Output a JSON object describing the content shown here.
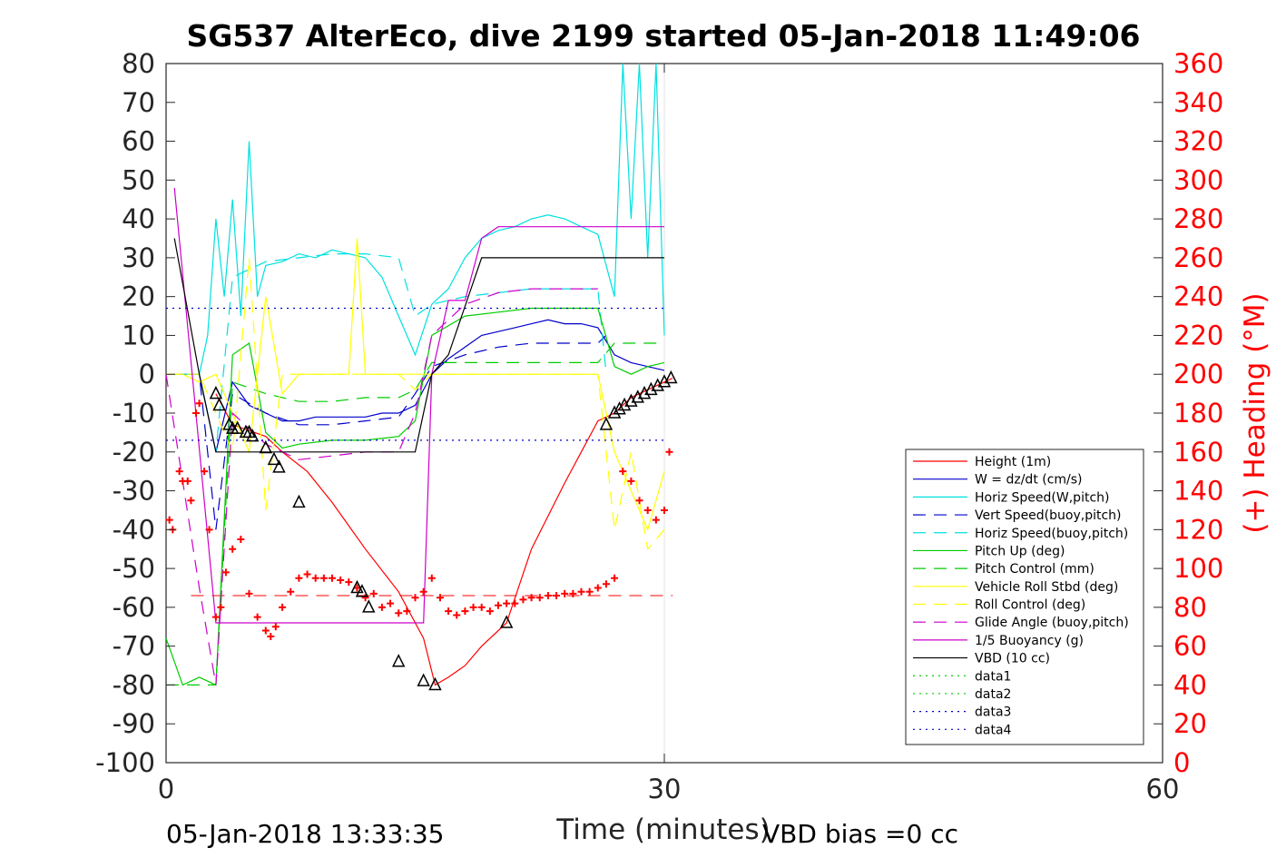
{
  "chart_data": {
    "type": "line",
    "title": "SG537 AlterEco, dive 2199 started 05-Jan-2018 11:49:06",
    "xlabel": "Time (minutes)",
    "ylabel_right": "(+) Heading (°M)",
    "xlim": [
      0,
      60
    ],
    "ylim": [
      -100,
      80
    ],
    "ylim_right": [
      0,
      360
    ],
    "xticks": [
      "0",
      "30",
      "60"
    ],
    "yticks": [
      "80",
      "70",
      "60",
      "50",
      "40",
      "30",
      "20",
      "10",
      "0",
      "-10",
      "-20",
      "-30",
      "-40",
      "-50",
      "-60",
      "-70",
      "-80",
      "-90",
      "-100"
    ],
    "yticks_right": [
      "360",
      "340",
      "320",
      "300",
      "280",
      "260",
      "240",
      "220",
      "200",
      "180",
      "160",
      "140",
      "120",
      "100",
      "80",
      "60",
      "40",
      "20",
      "0"
    ],
    "footer_left": "05-Jan-2018 13:33:35",
    "footer_right": "VBD bias =0 cc",
    "legend_position": "bottom-right",
    "grid_x": [
      30
    ],
    "series": [
      {
        "name": "Height (1m)",
        "color": "#ff0000",
        "style": "solid",
        "x": [
          3,
          4,
          6,
          7,
          8.5,
          10,
          12,
          14,
          15.5,
          16.2,
          17,
          18,
          19,
          20.5,
          22,
          24,
          26,
          27,
          28,
          29,
          30,
          30.5
        ],
        "y": [
          -5,
          -13,
          -16,
          -20,
          -25,
          -33,
          -45,
          -56,
          -68,
          -80,
          -78,
          -75,
          -70,
          -64,
          -45,
          -28,
          -12,
          -10,
          -6,
          -4,
          -2,
          -1
        ]
      },
      {
        "name": "W = dz/dt (cm/s)",
        "color": "#0000cc",
        "style": "solid",
        "x": [
          0,
          2,
          3,
          4,
          5,
          6,
          7,
          8,
          9,
          10,
          11,
          12,
          13,
          14,
          15,
          16,
          17,
          18,
          19,
          20,
          21,
          22,
          23,
          24,
          25,
          26,
          27,
          28,
          29,
          30
        ],
        "y": [
          0,
          0,
          -20,
          -2,
          -8,
          -10,
          -12,
          -12,
          -11,
          -11,
          -11,
          -11,
          -10,
          -10,
          -8,
          0,
          4,
          7,
          10,
          11,
          12,
          13,
          14,
          13,
          13,
          12,
          5,
          3,
          2,
          1
        ]
      },
      {
        "name": "Horiz Speed(W,pitch)",
        "color": "#00e0e0",
        "style": "solid",
        "x": [
          0,
          2,
          2.5,
          3,
          3.5,
          4,
          4.5,
          5,
          5.5,
          6,
          7,
          8,
          9,
          10,
          11,
          12,
          13,
          14,
          15,
          16,
          17,
          18,
          19,
          20,
          21,
          22,
          23,
          24,
          25,
          26,
          27,
          27.5,
          28,
          28.5,
          29,
          29.5,
          30
        ],
        "y": [
          0,
          0,
          10,
          40,
          20,
          45,
          15,
          60,
          20,
          28,
          29,
          31,
          30,
          32,
          31,
          30,
          25,
          15,
          5,
          18,
          22,
          30,
          35,
          37,
          38,
          40,
          41,
          40,
          38,
          36,
          20,
          80,
          40,
          80,
          30,
          80,
          10
        ]
      },
      {
        "name": "Vert Speed(buoy,pitch)",
        "color": "#0000cc",
        "style": "dash",
        "x": [
          0,
          2,
          3,
          4,
          6,
          8,
          10,
          12,
          14,
          15,
          16,
          18,
          20,
          22,
          24,
          26,
          26.5
        ],
        "y": [
          0,
          0,
          -40,
          -5,
          -10,
          -13,
          -13,
          -12,
          -11,
          -5,
          2,
          5,
          7,
          8,
          8,
          8,
          10
        ]
      },
      {
        "name": "Horiz Speed(buoy,pitch)",
        "color": "#00e0e0",
        "style": "dash",
        "x": [
          0,
          2,
          3,
          4,
          6,
          8,
          10,
          12,
          14,
          15,
          16,
          18,
          20,
          22,
          24,
          26,
          26.5
        ],
        "y": [
          0,
          0,
          -20,
          25,
          29,
          30,
          31,
          31,
          30,
          15,
          18,
          20,
          21,
          22,
          22,
          22,
          0
        ]
      },
      {
        "name": "Pitch Up (deg)",
        "color": "#00cc00",
        "style": "solid",
        "x": [
          0,
          1,
          2,
          3,
          4,
          5,
          6,
          7,
          8,
          10,
          12,
          14,
          15,
          16,
          18,
          20,
          22,
          24,
          26,
          27,
          28,
          29,
          30
        ],
        "y": [
          -68,
          -80,
          -78,
          -80,
          5,
          8,
          -15,
          -19,
          -18,
          -17,
          -17,
          -16,
          -12,
          10,
          15,
          16,
          17,
          17,
          17,
          2,
          0,
          2,
          3
        ]
      },
      {
        "name": "Pitch Control (mm)",
        "color": "#00cc00",
        "style": "dash",
        "x": [
          0,
          3,
          4,
          6,
          8,
          10,
          12,
          14,
          15,
          16,
          18,
          20,
          22,
          24,
          26,
          27,
          30
        ],
        "y": [
          -80,
          -80,
          -2,
          -5,
          -7,
          -7,
          -6,
          -6,
          -4,
          3,
          3,
          3,
          3,
          3,
          3,
          8,
          8
        ]
      },
      {
        "name": "Vehicle Roll Stbd (deg)",
        "color": "#ffff00",
        "style": "solid",
        "x": [
          0,
          1,
          2,
          3,
          4,
          5,
          6,
          7,
          8,
          9,
          10,
          11,
          11.5,
          12,
          13,
          14,
          15,
          16,
          18,
          20,
          22,
          24,
          26,
          27,
          28,
          29,
          30
        ],
        "y": [
          0,
          0,
          -2,
          0,
          -10,
          -20,
          20,
          -5,
          0,
          0,
          0,
          0,
          35,
          0,
          0,
          0,
          0,
          0,
          0,
          0,
          0,
          0,
          0,
          -20,
          -30,
          -40,
          -25
        ]
      },
      {
        "name": "Roll Control (deg)",
        "color": "#ffff00",
        "style": "dash",
        "x": [
          0,
          2,
          3,
          4,
          5,
          6,
          7,
          8,
          10,
          12,
          14,
          15,
          16,
          18,
          20,
          22,
          24,
          26,
          27,
          28,
          29,
          30
        ],
        "y": [
          0,
          0,
          -10,
          -20,
          30,
          -35,
          0,
          0,
          0,
          0,
          0,
          -4,
          0,
          0,
          0,
          0,
          0,
          0,
          -40,
          -20,
          -45,
          -40
        ]
      },
      {
        "name": "Glide Angle (buoy,pitch)",
        "color": "#cc00cc",
        "style": "dash",
        "x": [
          0,
          2,
          3,
          4,
          6,
          8,
          10,
          12,
          14,
          15,
          16,
          18,
          20,
          22,
          24,
          26
        ],
        "y": [
          0,
          -55,
          -80,
          -10,
          -18,
          -22,
          -21,
          -20,
          -20,
          -10,
          10,
          18,
          21,
          22,
          22,
          22
        ]
      },
      {
        "name": "1/5 Buoyancy (g)",
        "color": "#cc00cc",
        "style": "solid",
        "x": [
          0.5,
          3,
          3.5,
          5,
          8,
          11,
          14,
          15.5,
          16,
          17,
          18,
          19,
          20,
          23,
          26,
          30
        ],
        "y": [
          48,
          -64,
          -64,
          -64,
          -64,
          -64,
          -64,
          -64,
          0,
          19,
          19,
          35,
          38,
          38,
          38,
          38
        ]
      },
      {
        "name": "VBD (10 cc)",
        "color": "#000000",
        "style": "solid",
        "x": [
          0.5,
          2,
          3,
          5,
          8,
          11,
          14,
          15,
          16,
          17,
          19,
          20,
          23,
          26,
          30
        ],
        "y": [
          35,
          0,
          -20,
          -20,
          -20,
          -20,
          -20,
          -20,
          0,
          5,
          30,
          30,
          30,
          30,
          30
        ]
      },
      {
        "name": "data1",
        "color": "#00cc00",
        "style": "dot",
        "x": [],
        "y": []
      },
      {
        "name": "data2",
        "color": "#00cc00",
        "style": "dot",
        "x": [],
        "y": []
      },
      {
        "name": "data3",
        "color": "#0000cc",
        "style": "dot",
        "x": [
          0,
          30
        ],
        "y": [
          -17,
          -17
        ]
      },
      {
        "name": "data4",
        "color": "#0000cc",
        "style": "dot",
        "x": [
          0,
          30
        ],
        "y": [
          17,
          17
        ]
      }
    ],
    "reference_line": {
      "color": "#ff0000",
      "style": "dash",
      "y_right": 86,
      "x": [
        1.5,
        30.5
      ]
    },
    "heading_points": {
      "color": "#ff0000",
      "x": [
        0.2,
        0.4,
        0.8,
        1.0,
        1.3,
        1.5,
        1.8,
        2.0,
        2.3,
        2.6,
        3.0,
        3.3,
        3.6,
        4.0,
        4.5,
        5.0,
        5.5,
        6.0,
        6.3,
        6.6,
        7.0,
        7.5,
        8.0,
        8.5,
        9.0,
        9.5,
        10.0,
        10.5,
        11.0,
        11.5,
        12.0,
        12.5,
        13.0,
        13.5,
        14.0,
        14.5,
        15.0,
        15.5,
        16.0,
        16.5,
        17.0,
        17.5,
        18.0,
        18.5,
        19.0,
        19.5,
        20.0,
        20.5,
        21.0,
        21.5,
        22.0,
        22.5,
        23.0,
        23.5,
        24.0,
        24.5,
        25.0,
        25.5,
        26.0,
        26.5,
        27.0,
        27.5,
        28.0,
        28.5,
        29.0,
        29.5,
        30.0,
        30.3
      ],
      "y": [
        125,
        120,
        150,
        145,
        145,
        135,
        180,
        185,
        150,
        120,
        75,
        80,
        98,
        110,
        115,
        87,
        75,
        68,
        65,
        70,
        80,
        88,
        95,
        97,
        95,
        95,
        95,
        94,
        93,
        90,
        85,
        87,
        80,
        82,
        77,
        78,
        85,
        88,
        95,
        85,
        78,
        76,
        78,
        80,
        80,
        78,
        81,
        82,
        82,
        84,
        85,
        85,
        86,
        86,
        87,
        87,
        88,
        88,
        90,
        92,
        95,
        150,
        145,
        135,
        130,
        125,
        130,
        160
      ]
    },
    "triangle_points": {
      "color": "#000000",
      "x": [
        3.0,
        3.2,
        3.8,
        4.0,
        4.3,
        4.8,
        5.0,
        5.2,
        6.0,
        6.5,
        6.8,
        8.0,
        11.5,
        11.8,
        12.2,
        14.0,
        15.5,
        16.2,
        20.5,
        26.5,
        27.0,
        27.3,
        27.6,
        28.0,
        28.4,
        28.8,
        29.2,
        29.6,
        30.0,
        30.4
      ],
      "y": [
        -5,
        -8,
        -13,
        -14,
        -14,
        -15,
        -15,
        -16,
        -19,
        -22,
        -24,
        -33,
        -55,
        -56,
        -60,
        -74,
        -79,
        -80,
        -64,
        -13,
        -10,
        -9,
        -8,
        -7,
        -6,
        -5,
        -4,
        -3,
        -2,
        -1
      ]
    }
  }
}
